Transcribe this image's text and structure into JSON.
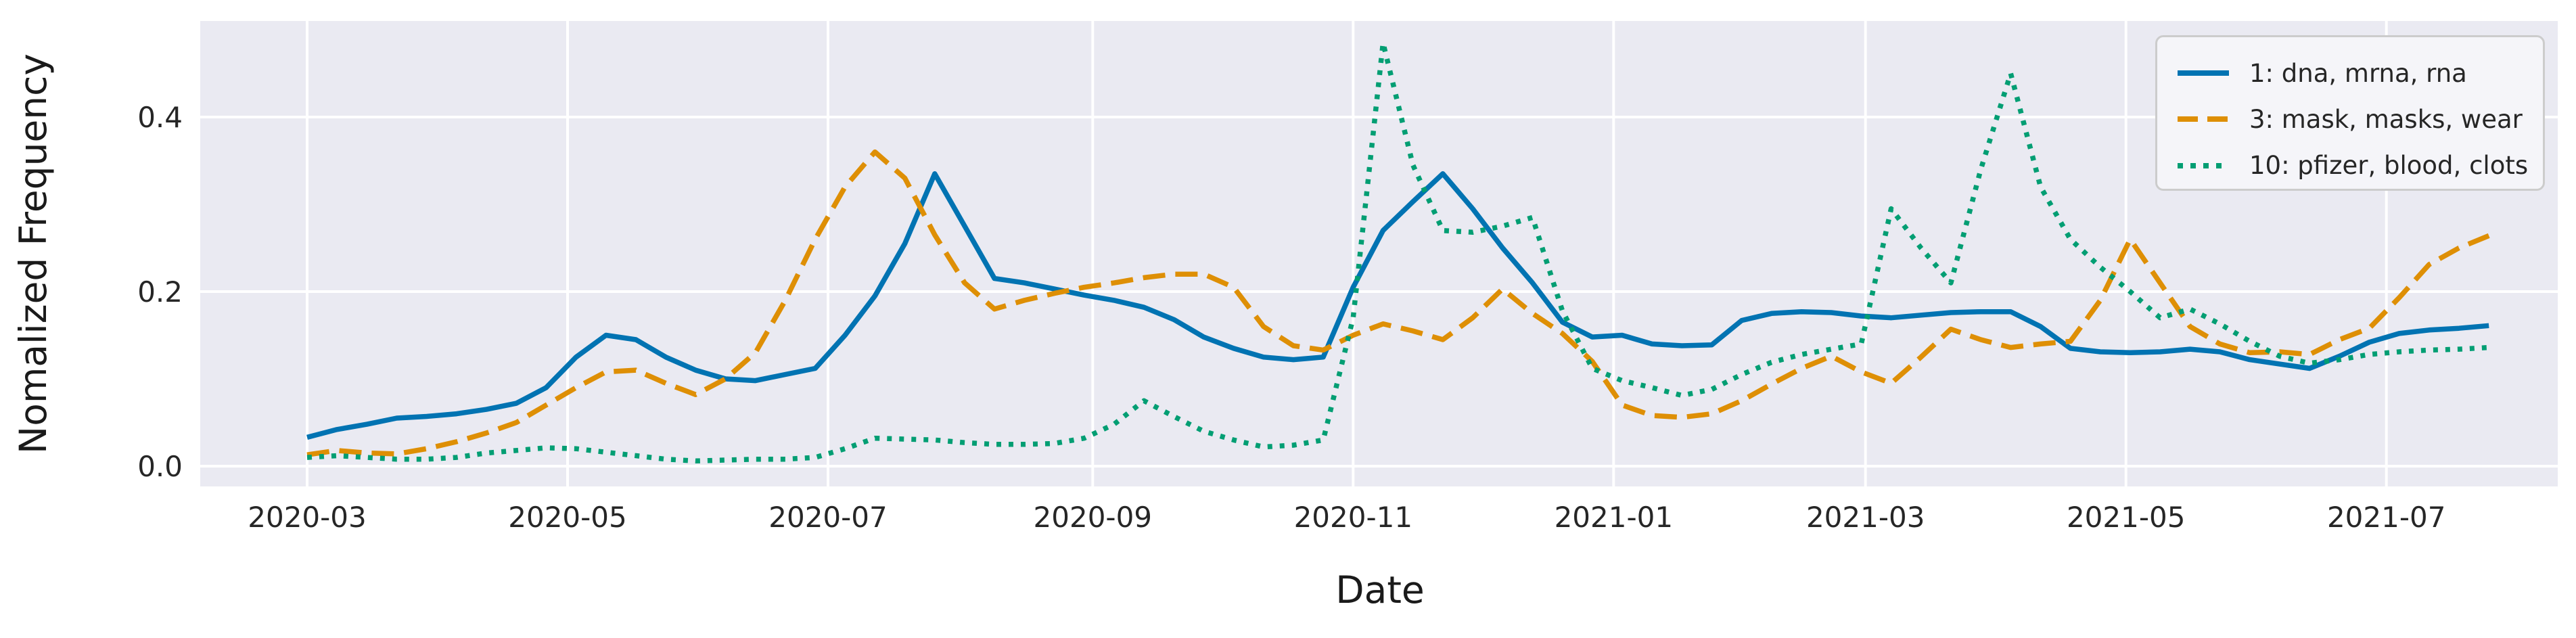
{
  "chart_data": {
    "type": "line",
    "title": "",
    "xlabel": "Date",
    "ylabel": "Nomalized Frequency",
    "grid": true,
    "legend_position": "upper right",
    "background_panel_color": "#eaeaf2",
    "gridline_color": "#ffffff",
    "text_color": "#262626",
    "x_start_date": "2020-03-01",
    "x_cadence": "weekly",
    "ylim": [
      -0.023,
      0.51
    ],
    "y_ticks": [
      {
        "value": 0.0,
        "label": "0.0"
      },
      {
        "value": 0.2,
        "label": "0.2"
      },
      {
        "value": 0.4,
        "label": "0.4"
      }
    ],
    "x_ticks": [
      {
        "day": 0,
        "label": "2020-03"
      },
      {
        "day": 61,
        "label": "2020-05"
      },
      {
        "day": 122,
        "label": "2020-07"
      },
      {
        "day": 184,
        "label": "2020-09"
      },
      {
        "day": 245,
        "label": "2020-11"
      },
      {
        "day": 306,
        "label": "2021-01"
      },
      {
        "day": 365,
        "label": "2021-03"
      },
      {
        "day": 426,
        "label": "2021-05"
      },
      {
        "day": 487,
        "label": "2021-07"
      }
    ],
    "series": [
      {
        "name": "1: dna, mrna, rna",
        "color": "#0173b2",
        "line_style": "solid",
        "values": [
          0.033,
          0.042,
          0.048,
          0.055,
          0.057,
          0.06,
          0.065,
          0.072,
          0.09,
          0.125,
          0.15,
          0.145,
          0.125,
          0.11,
          0.1,
          0.098,
          0.105,
          0.112,
          0.15,
          0.195,
          0.255,
          0.335,
          0.275,
          0.215,
          0.21,
          0.203,
          0.196,
          0.19,
          0.182,
          0.168,
          0.148,
          0.135,
          0.125,
          0.122,
          0.125,
          0.205,
          0.27,
          0.303,
          0.335,
          0.295,
          0.25,
          0.21,
          0.165,
          0.148,
          0.15,
          0.14,
          0.138,
          0.139,
          0.167,
          0.175,
          0.177,
          0.176,
          0.172,
          0.17,
          0.173,
          0.176,
          0.177,
          0.177,
          0.16,
          0.135,
          0.131,
          0.13,
          0.131,
          0.134,
          0.131,
          0.122,
          0.117,
          0.112,
          0.126,
          0.142,
          0.152,
          0.156,
          0.158,
          0.161
        ]
      },
      {
        "name": "3: mask, masks, wear",
        "color": "#de8f05",
        "line_style": "dashed",
        "values": [
          0.013,
          0.018,
          0.015,
          0.014,
          0.02,
          0.028,
          0.038,
          0.05,
          0.07,
          0.09,
          0.108,
          0.11,
          0.095,
          0.082,
          0.1,
          0.13,
          0.19,
          0.26,
          0.32,
          0.36,
          0.33,
          0.265,
          0.21,
          0.18,
          0.19,
          0.198,
          0.205,
          0.21,
          0.216,
          0.22,
          0.22,
          0.205,
          0.16,
          0.138,
          0.133,
          0.15,
          0.163,
          0.155,
          0.145,
          0.17,
          0.203,
          0.175,
          0.152,
          0.12,
          0.07,
          0.058,
          0.056,
          0.06,
          0.075,
          0.094,
          0.112,
          0.126,
          0.108,
          0.095,
          0.125,
          0.157,
          0.145,
          0.136,
          0.14,
          0.143,
          0.19,
          0.26,
          0.21,
          0.16,
          0.14,
          0.13,
          0.131,
          0.128,
          0.145,
          0.158,
          0.193,
          0.231,
          0.25,
          0.264
        ]
      },
      {
        "name": "10: pfizer, blood, clots",
        "color": "#029e73",
        "line_style": "dotted",
        "values": [
          0.01,
          0.012,
          0.01,
          0.008,
          0.008,
          0.01,
          0.015,
          0.018,
          0.021,
          0.02,
          0.016,
          0.012,
          0.008,
          0.006,
          0.007,
          0.008,
          0.008,
          0.01,
          0.02,
          0.032,
          0.031,
          0.03,
          0.027,
          0.025,
          0.025,
          0.026,
          0.032,
          0.048,
          0.075,
          0.057,
          0.04,
          0.03,
          0.022,
          0.024,
          0.03,
          0.17,
          0.485,
          0.345,
          0.27,
          0.268,
          0.275,
          0.285,
          0.178,
          0.112,
          0.098,
          0.09,
          0.081,
          0.088,
          0.105,
          0.119,
          0.128,
          0.134,
          0.14,
          0.295,
          0.25,
          0.21,
          0.34,
          0.45,
          0.32,
          0.26,
          0.228,
          0.2,
          0.17,
          0.18,
          0.163,
          0.143,
          0.126,
          0.118,
          0.122,
          0.128,
          0.131,
          0.133,
          0.134,
          0.136
        ]
      }
    ]
  }
}
